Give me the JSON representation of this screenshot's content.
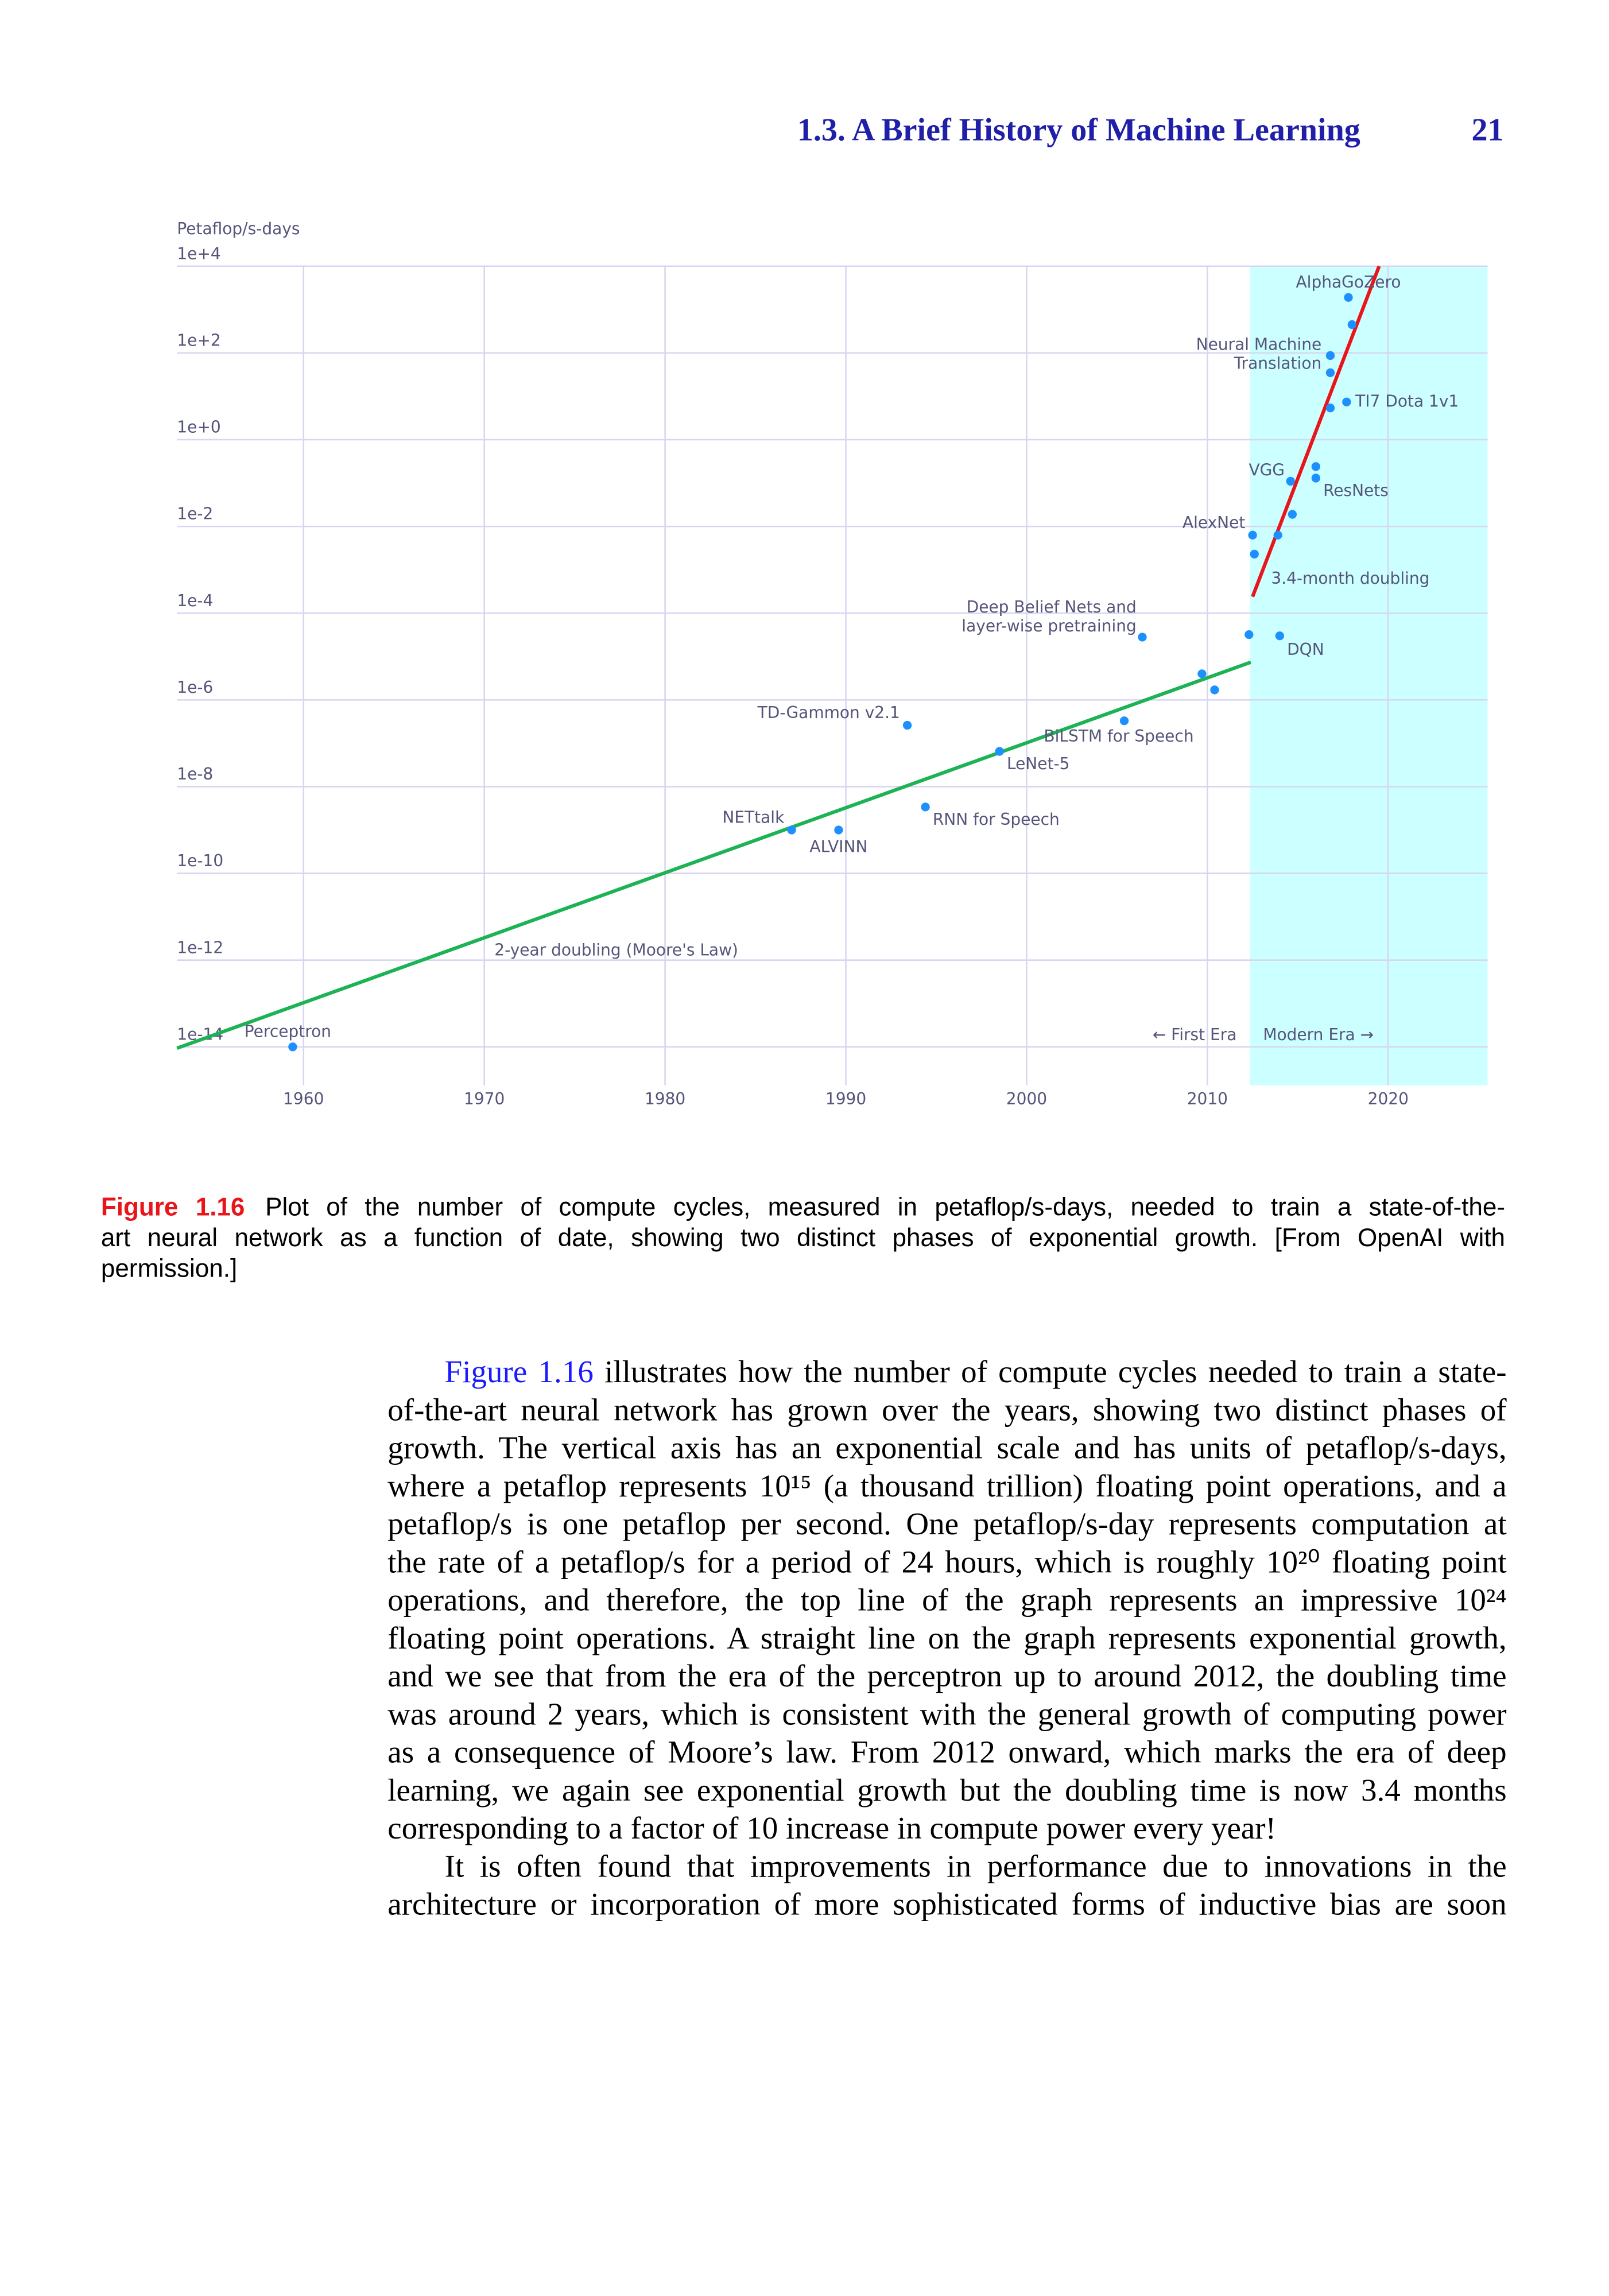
{
  "header": {
    "section_title": "1.3. A Brief History of Machine Learning",
    "page_number": "21"
  },
  "chart_data": {
    "type": "scatter",
    "y_label": "Petaflop/s-days",
    "y_scale": "log",
    "grid": true,
    "xlim": [
      1953,
      2025.5
    ],
    "ylim": [
      1.3e-15,
      10000
    ],
    "xticks": [
      1960,
      1970,
      1980,
      1990,
      2000,
      2010,
      2020
    ],
    "yticks": [
      {
        "value": 10000,
        "label": "1e+4"
      },
      {
        "value": 100,
        "label": "1e+2"
      },
      {
        "value": 1,
        "label": "1e+0"
      },
      {
        "value": 0.01,
        "label": "1e-2"
      },
      {
        "value": 0.0001,
        "label": "1e-4"
      },
      {
        "value": 1e-06,
        "label": "1e-6"
      },
      {
        "value": 1e-08,
        "label": "1e-8"
      },
      {
        "value": 1e-10,
        "label": "1e-10"
      },
      {
        "value": 1e-12,
        "label": "1e-12"
      },
      {
        "value": 1e-14,
        "label": "1e-14"
      }
    ],
    "points": {
      "color": "#1e8fff",
      "x": [
        1959.4,
        1987.0,
        1989.6,
        1994.4,
        1993.4,
        1998.5,
        2005.4,
        2006.4,
        2009.7,
        2010.4,
        2012.3,
        2014.0,
        2012.5,
        2012.6,
        2013.9,
        2014.7,
        2014.6,
        2016.0,
        2016.0,
        2016.8,
        2017.7,
        2016.8,
        2016.8,
        2018.0,
        2017.8
      ],
      "y": [
        1e-14,
        1e-09,
        1e-09,
        3.4e-09,
        2.6e-07,
        6.5e-08,
        3.3e-07,
        2.8e-05,
        4e-06,
        1.7e-06,
        3.2e-05,
        3e-05,
        0.0063,
        0.0023,
        0.0063,
        0.019,
        0.11,
        0.24,
        0.13,
        5.4,
        7.4,
        87,
        35,
        450,
        1900
      ],
      "labels": [
        "Perceptron",
        "NETtalk",
        "ALVINN",
        "RNN for Speech",
        "TD-Gammon v2.1",
        "LeNet-5",
        "BiLSTM for Speech",
        [
          "Deep Belief Nets and",
          "layer-wise pretraining"
        ],
        null,
        null,
        null,
        "DQN",
        "AlexNet",
        null,
        null,
        null,
        "VGG",
        null,
        "ResNets",
        null,
        "TI7 Dota 1v1",
        [
          "Neural Machine",
          "Translation"
        ],
        null,
        null,
        "AlphaGoZero"
      ]
    },
    "trend_lines": [
      {
        "label": "2-year doubling (Moore's Law)",
        "color": "#1db354",
        "x": [
          1953,
          2012.4
        ],
        "y": [
          9.3e-15,
          7.4e-06
        ]
      },
      {
        "label": "3.4-month doubling",
        "color": "#e8151b",
        "x": [
          2012.5,
          2019.5
        ],
        "y": [
          0.00024,
          10000
        ]
      }
    ],
    "region": {
      "x": [
        2012.35,
        2025.5
      ],
      "color": "#ccffff",
      "left_label": "← First Era",
      "right_label": "Modern Era →"
    }
  },
  "caption": {
    "label": "Figure 1.16",
    "lines": [
      "Plot of the number of compute cycles, measured in petaflop/s-days, needed to train a state-of-the-",
      "art neural network as a function of date, showing two distinct phases of exponential growth. [From OpenAI with",
      "permission.]"
    ]
  },
  "body": {
    "paragraphs": [
      {
        "link": "Figure 1.16",
        "lines": [
          "illustrates how the number of compute cycles needed to train a state-",
          "of-the-art neural network has grown over the years, showing two distinct phases of",
          "growth. The vertical axis has an exponential scale and has units of petaflop/s-days,",
          "where a petaflop represents 10¹⁵ (a thousand trillion) floating point operations, and a",
          "petaflop/s is one petaflop per second. One petaflop/s-day represents computation at",
          "the rate of a petaflop/s for a period of 24 hours, which is roughly 10²⁰ floating point",
          "operations, and therefore, the top line of the graph represents an impressive 10²⁴",
          "floating point operations. A straight line on the graph represents exponential growth,",
          "and we see that from the era of the perceptron up to around 2012, the doubling time",
          "was around 2 years, which is consistent with the general growth of computing power",
          "as a consequence of Moore’s law. From 2012 onward, which marks the era of deep",
          "learning, we again see exponential growth but the doubling time is now 3.4 months",
          "corresponding to a factor of 10 increase in compute power every year!"
        ]
      },
      {
        "lines": [
          "It is often found that improvements in performance due to innovations in the",
          "architecture or incorporation of more sophisticated forms of inductive bias are soon"
        ]
      }
    ]
  }
}
